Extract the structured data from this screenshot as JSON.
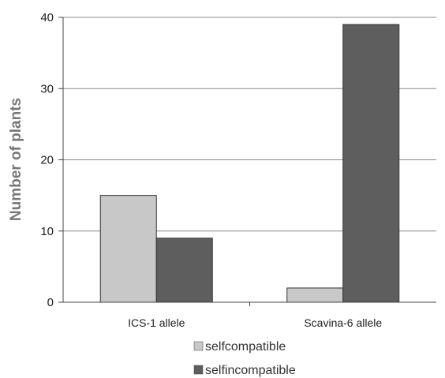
{
  "chart_data": {
    "type": "bar",
    "title": "",
    "xlabel": "",
    "ylabel": "Number of plants",
    "categories": [
      "ICS-1 allele",
      "Scavina-6 allele"
    ],
    "series": [
      {
        "name": "selfcompatible",
        "values": [
          15,
          2
        ],
        "color": "#c8c8c8"
      },
      {
        "name": "selfincompatible",
        "values": [
          9,
          39
        ],
        "color": "#5e5e5e"
      }
    ],
    "ylim": [
      0,
      40
    ],
    "yticks": [
      0,
      10,
      20,
      30,
      40
    ],
    "grid": true,
    "legend": "bottom"
  }
}
